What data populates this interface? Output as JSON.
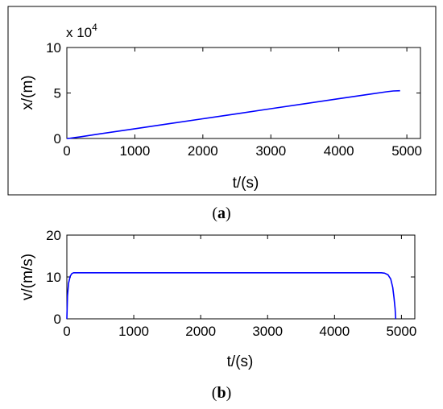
{
  "chart_data": [
    {
      "type": "line",
      "caption": {
        "open": "(",
        "letter": "a",
        "close": ")"
      },
      "xlabel": "t/(s)",
      "ylabel": "x/(m)",
      "xlim": [
        0,
        5200
      ],
      "ylim": [
        0,
        10
      ],
      "y_multiplier": {
        "base": "x 10",
        "exponent": "4"
      },
      "xticks": [
        "0",
        "1000",
        "2000",
        "3000",
        "4000",
        "5000"
      ],
      "yticks": [
        "0",
        "5",
        "10"
      ],
      "xtick_values": [
        0,
        1000,
        2000,
        3000,
        4000,
        5000
      ],
      "ytick_values": [
        0,
        5,
        10
      ],
      "grid": false,
      "series": [
        {
          "color": "#0000ff",
          "x": [
            0,
            50,
            100,
            200,
            500,
            1000,
            1500,
            2000,
            2500,
            3000,
            3500,
            4000,
            4500,
            4700,
            4800,
            4900
          ],
          "y": [
            0,
            0.03,
            0.08,
            0.19,
            0.52,
            1.07,
            1.62,
            2.17,
            2.72,
            3.27,
            3.82,
            4.37,
            4.92,
            5.13,
            5.22,
            5.25
          ]
        }
      ]
    },
    {
      "type": "line",
      "caption": {
        "open": "(",
        "letter": "b",
        "close": ")"
      },
      "xlabel": "t/(s)",
      "ylabel": "v/(m/s)",
      "xlim": [
        0,
        5200
      ],
      "ylim": [
        0,
        20
      ],
      "xticks": [
        "0",
        "1000",
        "2000",
        "3000",
        "4000",
        "5000"
      ],
      "yticks": [
        "0",
        "10",
        "20"
      ],
      "xtick_values": [
        0,
        1000,
        2000,
        3000,
        4000,
        5000
      ],
      "ytick_values": [
        0,
        10,
        20
      ],
      "grid": false,
      "series": [
        {
          "color": "#0000ff",
          "x": [
            0,
            10,
            25,
            50,
            75,
            100,
            150,
            200,
            500,
            1000,
            2000,
            3000,
            4000,
            4700,
            4750,
            4800,
            4840,
            4870,
            4890,
            4905,
            4915
          ],
          "y": [
            0,
            5.5,
            8.5,
            10.2,
            10.8,
            11.0,
            11.0,
            11.0,
            11.0,
            11.0,
            11.0,
            11.0,
            11.0,
            11.0,
            10.9,
            10.5,
            9.5,
            7.5,
            5.0,
            2.5,
            0
          ]
        }
      ]
    }
  ]
}
